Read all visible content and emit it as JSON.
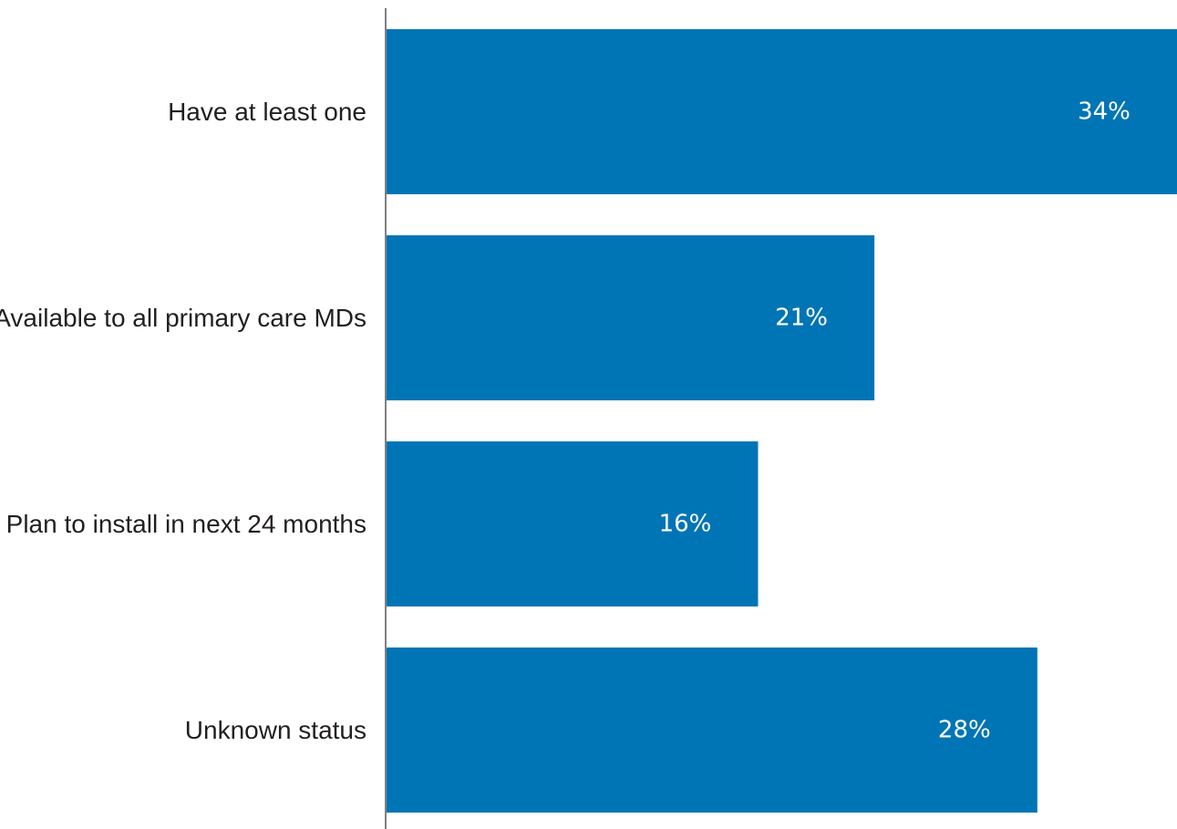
{
  "chart_data": {
    "type": "bar",
    "orientation": "horizontal",
    "categories": [
      "Have at least one",
      "Available to all primary care MDs",
      "Plan to install in next 24 months",
      "Unknown status"
    ],
    "values": [
      34,
      21,
      16,
      28
    ],
    "value_labels": [
      "34%",
      "21%",
      "16%",
      "28%"
    ],
    "unit": "%",
    "xlim": [
      0,
      34
    ],
    "grid": false,
    "legend": "none",
    "bar_color": "#0075b5",
    "axis_color": "#808080"
  }
}
